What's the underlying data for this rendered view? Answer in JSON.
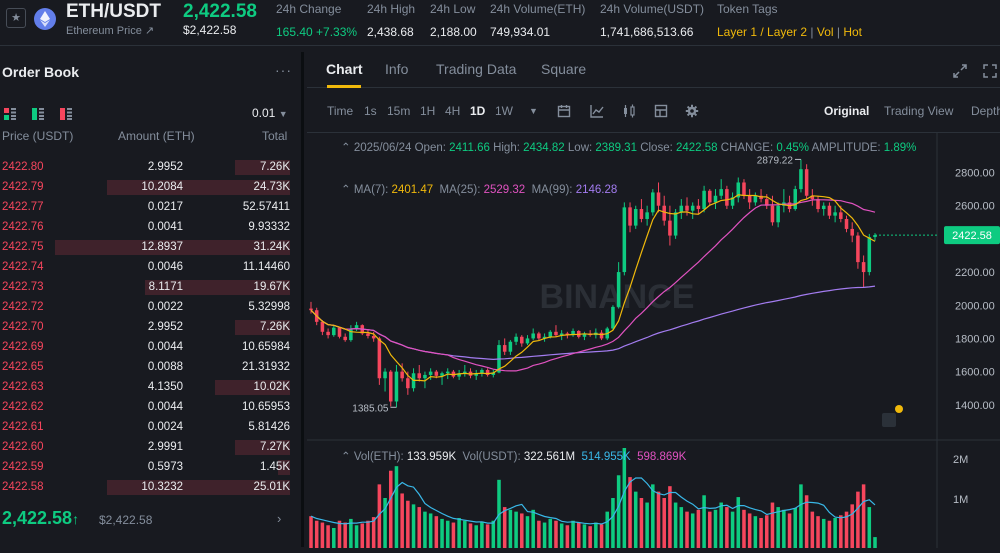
{
  "header": {
    "pair": "ETH/USDT",
    "pair_sub": "Ethereum Price ↗",
    "last": "2,422.58",
    "last_sub": "$2,422.58",
    "stats": [
      {
        "key": "24h Change",
        "value": "165.40 +7.33%",
        "kind": "up"
      },
      {
        "key": "24h High",
        "value": "2,438.68",
        "kind": ""
      },
      {
        "key": "24h Low",
        "value": "2,188.00",
        "kind": ""
      },
      {
        "key": "24h Volume(ETH)",
        "value": "749,934.01",
        "kind": ""
      },
      {
        "key": "24h Volume(USDT)",
        "value": "1,741,686,513.66",
        "kind": ""
      }
    ],
    "tags": {
      "key": "Token Tags",
      "items": [
        "Layer 1 / Layer 2",
        "Vol",
        "Hot"
      ]
    },
    "colors": {
      "up": "#0ecb81",
      "down": "#f6465d",
      "accent": "#f0b90b"
    }
  },
  "orderbook": {
    "title": "Order Book",
    "more": "···",
    "step": "0.01",
    "headers": {
      "price": "Price (USDT)",
      "amount": "Amount (ETH)",
      "total": "Total"
    },
    "asks": [
      {
        "price": "2422.80",
        "amount": "2.9952",
        "total": "7.26K",
        "depth": 0.19
      },
      {
        "price": "2422.79",
        "amount": "10.2084",
        "total": "24.73K",
        "depth": 0.63
      },
      {
        "price": "2422.77",
        "amount": "0.0217",
        "total": "52.57411",
        "depth": 0.0
      },
      {
        "price": "2422.76",
        "amount": "0.0041",
        "total": "9.93332",
        "depth": 0.0
      },
      {
        "price": "2422.75",
        "amount": "12.8937",
        "total": "31.24K",
        "depth": 0.81
      },
      {
        "price": "2422.74",
        "amount": "0.0046",
        "total": "11.14460",
        "depth": 0.0
      },
      {
        "price": "2422.73",
        "amount": "8.1171",
        "total": "19.67K",
        "depth": 0.5
      },
      {
        "price": "2422.72",
        "amount": "0.0022",
        "total": "5.32998",
        "depth": 0.0
      },
      {
        "price": "2422.70",
        "amount": "2.9952",
        "total": "7.26K",
        "depth": 0.19
      },
      {
        "price": "2422.69",
        "amount": "0.0044",
        "total": "10.65984",
        "depth": 0.0
      },
      {
        "price": "2422.65",
        "amount": "0.0088",
        "total": "21.31932",
        "depth": 0.0
      },
      {
        "price": "2422.63",
        "amount": "4.1350",
        "total": "10.02K",
        "depth": 0.26
      },
      {
        "price": "2422.62",
        "amount": "0.0044",
        "total": "10.65953",
        "depth": 0.0
      },
      {
        "price": "2422.61",
        "amount": "0.0024",
        "total": "5.81426",
        "depth": 0.0
      },
      {
        "price": "2422.60",
        "amount": "2.9991",
        "total": "7.27K",
        "depth": 0.19
      },
      {
        "price": "2422.59",
        "amount": "0.5973",
        "total": "1.45K",
        "depth": 0.04
      },
      {
        "price": "2422.58",
        "amount": "10.3232",
        "total": "25.01K",
        "depth": 0.63
      }
    ],
    "last_price": "2,422.58",
    "last_arrow": "↑",
    "last_usd": "$2,422.58",
    "next": "›"
  },
  "chart_panel": {
    "tabs": [
      "Chart",
      "Info",
      "Trading Data",
      "Square"
    ],
    "intervals": [
      "Time",
      "1s",
      "15m",
      "1H",
      "4H",
      "1D",
      "1W"
    ],
    "selected_interval": "1D",
    "views": [
      "Original",
      "Trading View",
      "Depth"
    ],
    "selected_view": "Original",
    "ohlc": {
      "date": "2025/06/24",
      "open_label": "Open:",
      "open": "2411.66",
      "high_label": "High:",
      "high": "2434.82",
      "low_label": "Low:",
      "low": "2389.31",
      "close_label": "Close:",
      "close": "2422.58",
      "change_label": "CHANGE:",
      "change": "0.45%",
      "amp_label": "AMPLITUDE:",
      "amp": "1.89%"
    },
    "ma": {
      "ma7_label": "MA(7):",
      "ma7": "2401.47",
      "ma25_label": "MA(25):",
      "ma25": "2529.32",
      "ma99_label": "MA(99):",
      "ma99": "2146.28"
    },
    "vol": {
      "v1_label": "Vol(ETH):",
      "v1": "133.959K",
      "v2_label": "Vol(USDT):",
      "v2": "322.561M",
      "v3": "514.955K",
      "v4": "598.869K"
    },
    "watermark": "BINANCE",
    "max_label": "2879.22",
    "min_label": "1385.05",
    "price_tag": "2422.58"
  },
  "chart_data": {
    "type": "candlestick",
    "ylim": [
      1230,
      2990
    ],
    "yticks": [
      1400,
      1600,
      1800,
      2000,
      2200,
      2400,
      2600,
      2800
    ],
    "vol_ticks": [
      "1M",
      "2M"
    ],
    "candles": [
      [
        1980,
        2020,
        1950,
        1970
      ],
      [
        1970,
        1985,
        1880,
        1900
      ],
      [
        1900,
        1910,
        1820,
        1840
      ],
      [
        1840,
        1860,
        1800,
        1820
      ],
      [
        1820,
        1880,
        1810,
        1865
      ],
      [
        1865,
        1870,
        1800,
        1810
      ],
      [
        1810,
        1830,
        1780,
        1790
      ],
      [
        1790,
        1880,
        1780,
        1860
      ],
      [
        1860,
        1900,
        1845,
        1880
      ],
      [
        1880,
        1885,
        1820,
        1830
      ],
      [
        1830,
        1850,
        1800,
        1815
      ],
      [
        1815,
        1840,
        1780,
        1800
      ],
      [
        1800,
        1810,
        1520,
        1560
      ],
      [
        1560,
        1620,
        1480,
        1600
      ],
      [
        1600,
        1610,
        1390,
        1420
      ],
      [
        1420,
        1640,
        1385,
        1600
      ],
      [
        1600,
        1650,
        1540,
        1560
      ],
      [
        1560,
        1600,
        1460,
        1500
      ],
      [
        1500,
        1620,
        1480,
        1590
      ],
      [
        1590,
        1640,
        1540,
        1560
      ],
      [
        1560,
        1600,
        1500,
        1580
      ],
      [
        1580,
        1620,
        1550,
        1600
      ],
      [
        1600,
        1610,
        1560,
        1575
      ],
      [
        1575,
        1600,
        1520,
        1590
      ],
      [
        1590,
        1620,
        1555,
        1600
      ],
      [
        1600,
        1610,
        1560,
        1570
      ],
      [
        1570,
        1610,
        1550,
        1590
      ],
      [
        1590,
        1640,
        1570,
        1600
      ],
      [
        1600,
        1620,
        1560,
        1575
      ],
      [
        1575,
        1610,
        1550,
        1590
      ],
      [
        1590,
        1620,
        1570,
        1610
      ],
      [
        1610,
        1620,
        1570,
        1580
      ],
      [
        1580,
        1610,
        1565,
        1595
      ],
      [
        1595,
        1790,
        1590,
        1760
      ],
      [
        1760,
        1800,
        1700,
        1720
      ],
      [
        1720,
        1790,
        1700,
        1780
      ],
      [
        1780,
        1830,
        1760,
        1810
      ],
      [
        1810,
        1820,
        1750,
        1770
      ],
      [
        1770,
        1820,
        1760,
        1800
      ],
      [
        1800,
        1860,
        1790,
        1830
      ],
      [
        1830,
        1840,
        1790,
        1800
      ],
      [
        1800,
        1830,
        1780,
        1810
      ],
      [
        1810,
        1850,
        1800,
        1840
      ],
      [
        1840,
        1880,
        1810,
        1820
      ],
      [
        1820,
        1850,
        1790,
        1830
      ],
      [
        1830,
        1840,
        1800,
        1820
      ],
      [
        1820,
        1860,
        1810,
        1845
      ],
      [
        1845,
        1850,
        1800,
        1810
      ],
      [
        1810,
        1840,
        1790,
        1830
      ],
      [
        1830,
        1850,
        1810,
        1820
      ],
      [
        1820,
        1860,
        1800,
        1835
      ],
      [
        1835,
        1850,
        1790,
        1800
      ],
      [
        1800,
        1870,
        1790,
        1860
      ],
      [
        1860,
        2000,
        1850,
        1990
      ],
      [
        1990,
        2260,
        1980,
        2200
      ],
      [
        2200,
        2620,
        2180,
        2590
      ],
      [
        2590,
        2620,
        2440,
        2480
      ],
      [
        2480,
        2600,
        2460,
        2580
      ],
      [
        2580,
        2640,
        2500,
        2520
      ],
      [
        2520,
        2600,
        2480,
        2560
      ],
      [
        2560,
        2700,
        2540,
        2680
      ],
      [
        2680,
        2740,
        2560,
        2600
      ],
      [
        2600,
        2660,
        2480,
        2510
      ],
      [
        2510,
        2600,
        2360,
        2420
      ],
      [
        2420,
        2580,
        2400,
        2560
      ],
      [
        2560,
        2640,
        2520,
        2600
      ],
      [
        2600,
        2650,
        2540,
        2570
      ],
      [
        2570,
        2620,
        2520,
        2600
      ],
      [
        2600,
        2640,
        2550,
        2580
      ],
      [
        2580,
        2720,
        2560,
        2690
      ],
      [
        2690,
        2700,
        2600,
        2620
      ],
      [
        2620,
        2700,
        2580,
        2660
      ],
      [
        2660,
        2760,
        2640,
        2700
      ],
      [
        2700,
        2720,
        2580,
        2600
      ],
      [
        2600,
        2680,
        2580,
        2650
      ],
      [
        2650,
        2770,
        2620,
        2740
      ],
      [
        2740,
        2760,
        2640,
        2660
      ],
      [
        2660,
        2700,
        2580,
        2620
      ],
      [
        2620,
        2680,
        2600,
        2660
      ],
      [
        2660,
        2700,
        2620,
        2640
      ],
      [
        2640,
        2670,
        2580,
        2600
      ],
      [
        2600,
        2660,
        2480,
        2500
      ],
      [
        2500,
        2620,
        2470,
        2600
      ],
      [
        2600,
        2700,
        2560,
        2620
      ],
      [
        2620,
        2660,
        2560,
        2580
      ],
      [
        2580,
        2720,
        2570,
        2700
      ],
      [
        2700,
        2879,
        2680,
        2820
      ],
      [
        2820,
        2850,
        2640,
        2660
      ],
      [
        2660,
        2700,
        2600,
        2640
      ],
      [
        2640,
        2660,
        2560,
        2580
      ],
      [
        2580,
        2620,
        2540,
        2600
      ],
      [
        2600,
        2620,
        2520,
        2540
      ],
      [
        2540,
        2600,
        2500,
        2560
      ],
      [
        2560,
        2600,
        2500,
        2520
      ],
      [
        2520,
        2540,
        2440,
        2460
      ],
      [
        2460,
        2500,
        2380,
        2420
      ],
      [
        2420,
        2440,
        2220,
        2260
      ],
      [
        2260,
        2300,
        2110,
        2200
      ],
      [
        2200,
        2430,
        2180,
        2411
      ],
      [
        2411,
        2435,
        2389,
        2423
      ]
    ],
    "volumes": [
      0.35,
      0.3,
      0.28,
      0.25,
      0.22,
      0.3,
      0.28,
      0.32,
      0.25,
      0.27,
      0.3,
      0.34,
      0.7,
      0.55,
      0.85,
      0.9,
      0.6,
      0.52,
      0.48,
      0.45,
      0.4,
      0.38,
      0.35,
      0.32,
      0.3,
      0.28,
      0.33,
      0.3,
      0.27,
      0.25,
      0.29,
      0.26,
      0.3,
      0.75,
      0.45,
      0.42,
      0.4,
      0.38,
      0.35,
      0.42,
      0.3,
      0.28,
      0.32,
      0.3,
      0.27,
      0.25,
      0.3,
      0.28,
      0.26,
      0.24,
      0.28,
      0.26,
      0.4,
      0.55,
      0.8,
      1.1,
      0.78,
      0.62,
      0.55,
      0.5,
      0.7,
      0.62,
      0.55,
      0.68,
      0.5,
      0.45,
      0.4,
      0.38,
      0.42,
      0.58,
      0.4,
      0.42,
      0.5,
      0.45,
      0.4,
      0.56,
      0.42,
      0.38,
      0.35,
      0.33,
      0.36,
      0.5,
      0.45,
      0.42,
      0.38,
      0.44,
      0.7,
      0.58,
      0.4,
      0.35,
      0.32,
      0.3,
      0.33,
      0.36,
      0.4,
      0.48,
      0.62,
      0.7,
      0.45,
      0.12
    ],
    "ma7": [
      2401.47
    ],
    "ma25": [
      2529.32
    ],
    "ma99": [
      2146.28
    ]
  }
}
